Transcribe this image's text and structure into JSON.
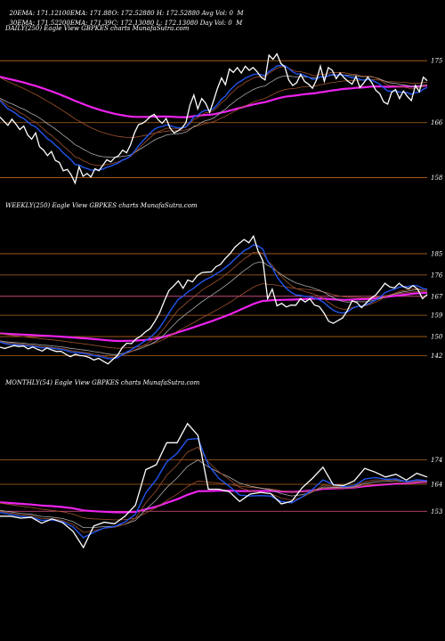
{
  "header": {
    "row1": [
      {
        "label": "20EMA: 171.12"
      },
      {
        "label": "100EMA: 171.88"
      },
      {
        "label": "O: 172.52880 H: 172.52880 Avg Vol: 0  M"
      }
    ],
    "row2": [
      {
        "label": "30EMA: 171.52"
      },
      {
        "label": "200EMA: 171.39"
      },
      {
        "label": "C: 172.13080 L: 172.13080 Day Vol: 0  M"
      }
    ]
  },
  "colors": {
    "background": "#000000",
    "price": "#ffffff",
    "ema_blue": "#2255ee",
    "ema_magenta": "#ee22ee",
    "ema_brown": "#a0522d",
    "ema_grey": "#aaaaaa",
    "level_line": "#b5651d",
    "level_line_pink": "#e0558a"
  },
  "chart_data": [
    {
      "type": "line",
      "title": "DAILY(250) Eagle   View  GBPKES charts MunafaSutra.com",
      "price_levels": [
        175,
        166,
        158
      ],
      "level_labels": [
        "175",
        "166",
        "158"
      ],
      "ylim": [
        156,
        178
      ],
      "price": [
        166.8,
        166.2,
        165.6,
        166.5,
        165.8,
        165.0,
        165.5,
        164.2,
        163.6,
        164.5,
        162.5,
        162.0,
        161.2,
        161.8,
        160.5,
        160.2,
        159.0,
        159.2,
        158.4,
        157.2,
        159.6,
        158.2,
        158.6,
        158.1,
        159.3,
        159.0,
        159.8,
        160.6,
        160.3,
        160.9,
        161.2,
        162.0,
        161.6,
        162.8,
        164.5,
        165.7,
        165.9,
        166.3,
        166.9,
        167.2,
        166.4,
        165.9,
        166.6,
        165.2,
        164.5,
        164.8,
        165.2,
        166.0,
        168.5,
        170.0,
        168.0,
        169.5,
        168.8,
        167.5,
        169.2,
        171.0,
        172.5,
        171.5,
        173.8,
        173.3,
        174.0,
        173.2,
        174.2,
        173.6,
        174.0,
        173.4,
        172.6,
        172.2,
        175.8,
        175.2,
        176.0,
        174.6,
        174.1,
        172.2,
        171.4,
        171.8,
        173.0,
        172.0,
        171.6,
        171.0,
        172.2,
        174.2,
        172.0,
        174.0,
        173.6,
        172.4,
        173.2,
        172.5,
        172.0,
        171.6,
        172.7,
        171.1,
        171.8,
        172.6,
        171.8,
        170.7,
        170.2,
        169.0,
        168.7,
        170.4,
        170.8,
        169.5,
        170.6,
        169.8,
        169.2,
        171.4,
        170.5,
        172.6,
        172.1
      ],
      "ema_levels": {
        "ema20": 171.12,
        "ema30": 171.52,
        "ema100": 171.88,
        "ema200": 171.39
      }
    },
    {
      "type": "line",
      "title": "WEEKLY(250) Eagle   View  GBPKES charts MunafaSutra.com",
      "price_levels": [
        185,
        176,
        167,
        159,
        150,
        142
      ],
      "level_labels": [
        "185",
        "176",
        "167",
        "159",
        "150",
        "142"
      ],
      "ylim": [
        138,
        200
      ],
      "price": [
        145.5,
        145.0,
        145.6,
        146.2,
        145.8,
        146.0,
        144.8,
        145.6,
        144.6,
        143.9,
        145.2,
        144.4,
        143.7,
        143.8,
        142.6,
        141.5,
        142.5,
        142.0,
        141.8,
        141.2,
        140.1,
        140.8,
        139.6,
        138.5,
        140.3,
        142.0,
        145.2,
        147.2,
        147.0,
        149.0,
        150.2,
        152.0,
        153.4,
        156.5,
        160.0,
        165.0,
        169.5,
        171.4,
        173.5,
        170.4,
        173.9,
        173.1,
        175.7,
        177.0,
        177.2,
        177.3,
        179.5,
        180.5,
        183.0,
        185.0,
        187.6,
        189.4,
        191.0,
        189.6,
        192.4,
        186.0,
        182.0,
        166.0,
        170.0,
        163.0,
        164.0,
        162.5,
        163.3,
        163.2,
        166.0,
        164.6,
        166.0,
        163.3,
        162.7,
        160.0,
        156.5,
        155.6,
        156.8,
        157.9,
        161.0,
        165.1,
        164.4,
        162.2,
        164.1,
        166.2,
        167.5,
        169.9,
        172.5,
        171.0,
        170.5,
        172.5,
        171.0,
        170.2,
        171.5,
        169.9,
        166.0,
        167.8
      ],
      "ema_levels": {
        "ema20": 170.0,
        "ema30": 169.5,
        "ema100": 169.0,
        "ema200": 168.5
      }
    },
    {
      "type": "line",
      "title": "MONTHLY(54) Eagle   View  GBPKES charts MunafaSutra.com",
      "price_levels": [
        174,
        164,
        153
      ],
      "level_labels": [
        "174",
        "164",
        "153"
      ],
      "ylim": [
        140,
        200
      ],
      "price": [
        151.0,
        151.0,
        150.2,
        150.5,
        148.1,
        149.9,
        148.4,
        144.8,
        138.2,
        147.0,
        148.5,
        147.9,
        151.0,
        155.5,
        170.0,
        172.0,
        181.0,
        181.0,
        188.8,
        184.0,
        162.0,
        162.0,
        161.0,
        157.0,
        160.0,
        160.7,
        160.2,
        156.0,
        157.1,
        162.6,
        166.5,
        171.0,
        163.7,
        163.5,
        165.4,
        170.5,
        169.0,
        167.0,
        168.1,
        165.7,
        168.5,
        167.0
      ],
      "ema_levels": {
        "ema20": 165.5,
        "ema30": 165.5,
        "ema100": 165.0,
        "ema200": 165.0
      }
    }
  ]
}
